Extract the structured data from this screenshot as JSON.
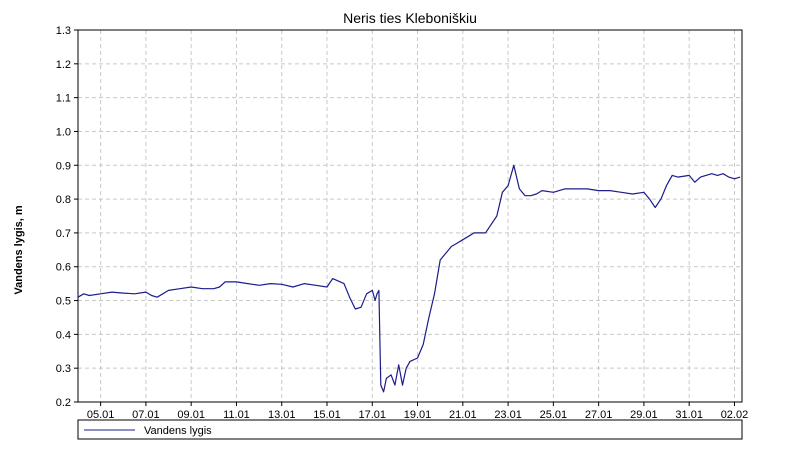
{
  "chart_data": {
    "type": "line",
    "title": "Neris ties Kleboniškiu",
    "ylabel": "Vandens lygis, m",
    "xlabel": "",
    "ylim": [
      0.2,
      1.3
    ],
    "yticks": [
      0.2,
      0.3,
      0.4,
      0.5,
      0.6,
      0.7,
      0.8,
      0.9,
      1.0,
      1.1,
      1.2,
      1.3
    ],
    "ytick_labels": [
      "0.2",
      "0.3",
      "0.4",
      "0.5",
      "0.6",
      "0.7",
      "0.8",
      "0.9",
      "1.0",
      "1.1",
      "1.2",
      "1.3"
    ],
    "x_range": [
      "2020-01-04",
      "2020-02-02T08:00"
    ],
    "xticks": [
      "2020-01-05",
      "2020-01-07",
      "2020-01-09",
      "2020-01-11",
      "2020-01-13",
      "2020-01-15",
      "2020-01-17",
      "2020-01-19",
      "2020-01-21",
      "2020-01-23",
      "2020-01-25",
      "2020-01-27",
      "2020-01-29",
      "2020-01-31",
      "2020-02-02"
    ],
    "xtick_labels": [
      "05.01",
      "07.01",
      "09.01",
      "11.01",
      "13.01",
      "15.01",
      "17.01",
      "19.01",
      "21.01",
      "23.01",
      "25.01",
      "27.01",
      "29.01",
      "31.01",
      "02.02"
    ],
    "grid": true,
    "legend_position": "bottom",
    "series": [
      {
        "name": "Vandens lygis",
        "color": "#1c1c8c",
        "x": [
          "2020-01-04T00:00",
          "2020-01-04T06:00",
          "2020-01-04T12:00",
          "2020-01-05T00:00",
          "2020-01-05T12:00",
          "2020-01-06T00:00",
          "2020-01-06T12:00",
          "2020-01-07T00:00",
          "2020-01-07T06:00",
          "2020-01-07T12:00",
          "2020-01-08T00:00",
          "2020-01-08T12:00",
          "2020-01-09T00:00",
          "2020-01-09T12:00",
          "2020-01-10T00:00",
          "2020-01-10T06:00",
          "2020-01-10T12:00",
          "2020-01-11T00:00",
          "2020-01-11T12:00",
          "2020-01-12T00:00",
          "2020-01-12T12:00",
          "2020-01-13T00:00",
          "2020-01-13T12:00",
          "2020-01-14T00:00",
          "2020-01-14T12:00",
          "2020-01-15T00:00",
          "2020-01-15T06:00",
          "2020-01-15T18:00",
          "2020-01-16T00:00",
          "2020-01-16T06:00",
          "2020-01-16T12:00",
          "2020-01-16T18:00",
          "2020-01-17T00:00",
          "2020-01-17T03:00",
          "2020-01-17T05:00",
          "2020-01-17T07:00",
          "2020-01-17T09:00",
          "2020-01-17T12:00",
          "2020-01-17T15:00",
          "2020-01-17T20:00",
          "2020-01-18T00:00",
          "2020-01-18T04:00",
          "2020-01-18T08:00",
          "2020-01-18T12:00",
          "2020-01-18T16:00",
          "2020-01-19T00:00",
          "2020-01-19T06:00",
          "2020-01-19T12:00",
          "2020-01-19T18:00",
          "2020-01-20T00:00",
          "2020-01-20T06:00",
          "2020-01-20T12:00",
          "2020-01-20T18:00",
          "2020-01-21T00:00",
          "2020-01-21T06:00",
          "2020-01-21T12:00",
          "2020-01-22T00:00",
          "2020-01-22T12:00",
          "2020-01-22T18:00",
          "2020-01-23T00:00",
          "2020-01-23T06:00",
          "2020-01-23T12:00",
          "2020-01-23T18:00",
          "2020-01-24T00:00",
          "2020-01-24T06:00",
          "2020-01-24T12:00",
          "2020-01-25T00:00",
          "2020-01-25T12:00",
          "2020-01-26T00:00",
          "2020-01-26T12:00",
          "2020-01-27T00:00",
          "2020-01-27T12:00",
          "2020-01-28T00:00",
          "2020-01-28T12:00",
          "2020-01-29T00:00",
          "2020-01-29T06:00",
          "2020-01-29T12:00",
          "2020-01-29T18:00",
          "2020-01-30T00:00",
          "2020-01-30T06:00",
          "2020-01-30T12:00",
          "2020-01-31T00:00",
          "2020-01-31T06:00",
          "2020-01-31T12:00",
          "2020-02-01T00:00",
          "2020-02-01T06:00",
          "2020-02-01T12:00",
          "2020-02-01T18:00",
          "2020-02-02T00:00",
          "2020-02-02T06:00"
        ],
        "y": [
          0.51,
          0.52,
          0.515,
          0.52,
          0.525,
          0.522,
          0.52,
          0.525,
          0.515,
          0.51,
          0.53,
          0.535,
          0.54,
          0.535,
          0.535,
          0.54,
          0.555,
          0.555,
          0.55,
          0.545,
          0.55,
          0.548,
          0.54,
          0.55,
          0.545,
          0.54,
          0.565,
          0.55,
          0.51,
          0.475,
          0.48,
          0.52,
          0.53,
          0.5,
          0.52,
          0.53,
          0.25,
          0.23,
          0.27,
          0.28,
          0.25,
          0.31,
          0.25,
          0.3,
          0.32,
          0.33,
          0.37,
          0.45,
          0.52,
          0.62,
          0.64,
          0.66,
          0.67,
          0.68,
          0.69,
          0.7,
          0.7,
          0.75,
          0.82,
          0.84,
          0.9,
          0.83,
          0.81,
          0.81,
          0.815,
          0.825,
          0.82,
          0.83,
          0.83,
          0.83,
          0.825,
          0.825,
          0.82,
          0.815,
          0.82,
          0.8,
          0.775,
          0.8,
          0.84,
          0.87,
          0.865,
          0.87,
          0.85,
          0.865,
          0.875,
          0.87,
          0.875,
          0.865,
          0.86,
          0.865
        ]
      }
    ]
  }
}
